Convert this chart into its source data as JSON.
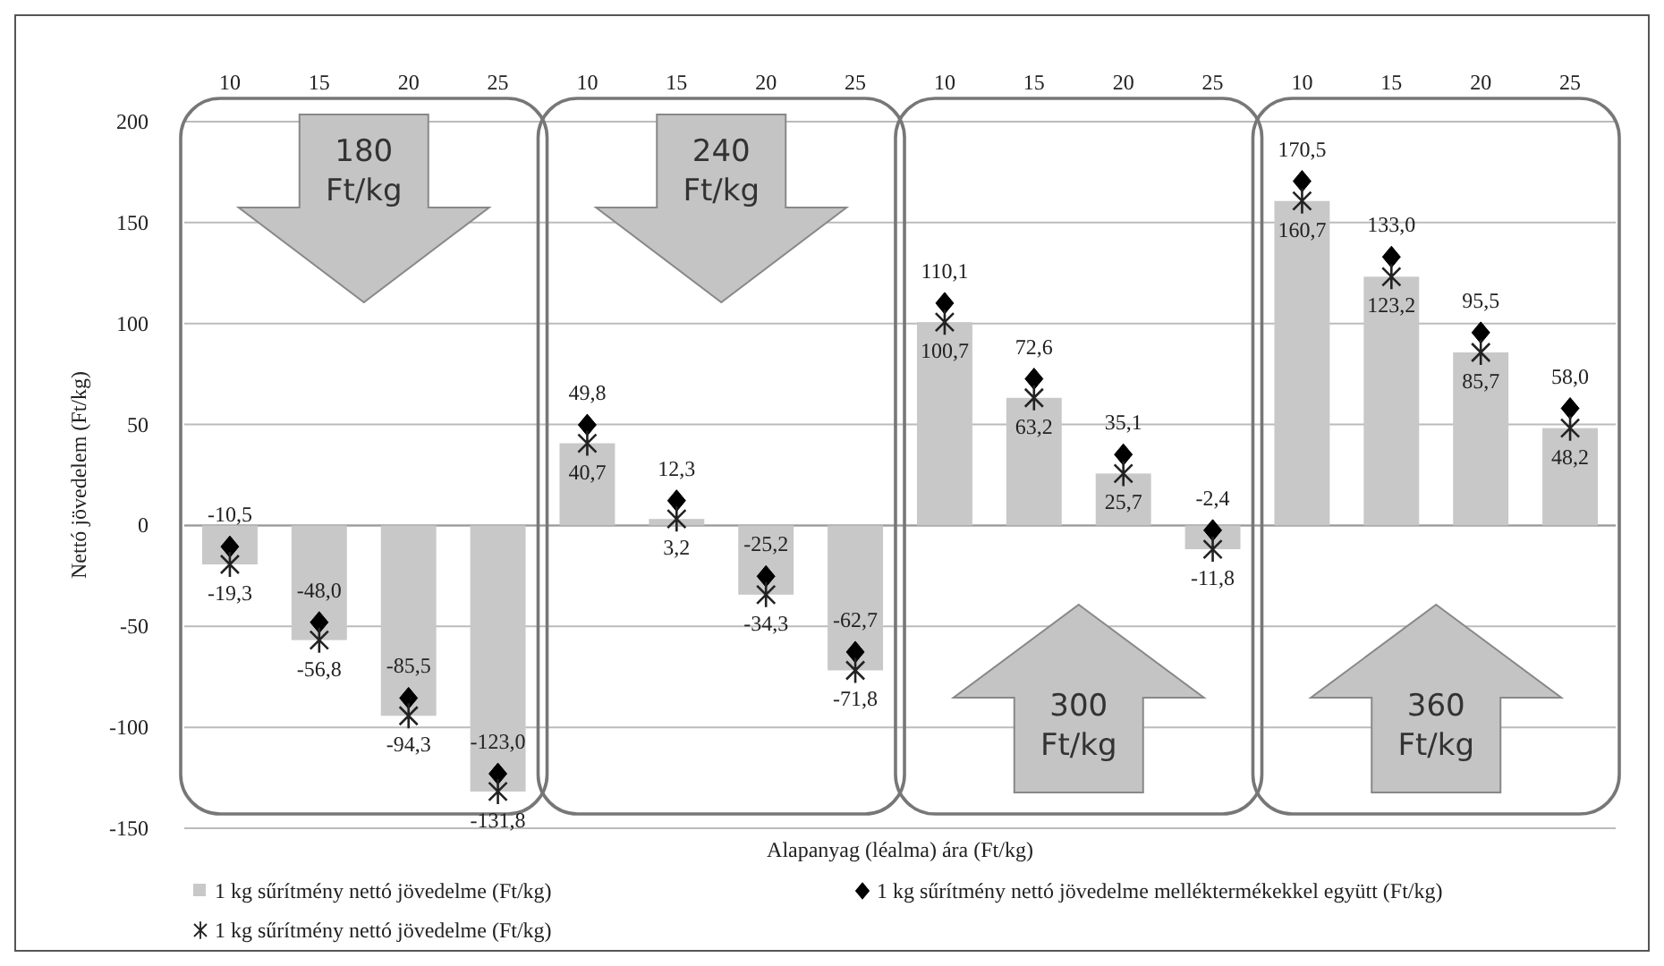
{
  "chart_data": {
    "type": "bar",
    "xlabel": "Alapanyag (léalma) ára (Ft/kg)",
    "ylabel": "Nettó jövedelem (Ft/kg)",
    "categories": [
      "10",
      "15",
      "20",
      "25",
      "10",
      "15",
      "20",
      "25",
      "10",
      "15",
      "20",
      "25",
      "10",
      "15",
      "20",
      "25"
    ],
    "series": [
      {
        "name": "1 kg sűrítmény nettó jövedelme (Ft/kg)",
        "color": "#c8c8c8",
        "values": [
          -19.3,
          -56.8,
          -94.3,
          -131.8,
          40.7,
          3.2,
          -34.3,
          -71.8,
          100.7,
          63.2,
          25.7,
          -11.8,
          160.7,
          123.2,
          85.7,
          48.2
        ],
        "value_labels": [
          "-19,3",
          "-56,8",
          "-94,3",
          "-131,8",
          "40,7",
          "3,2",
          "-34,3",
          "-71,8",
          "100,7",
          "63,2",
          "25,7",
          "-11,8",
          "160,7",
          "123,2",
          "85,7",
          "48,2"
        ]
      },
      {
        "type": "scatter",
        "name": "1 kg sűrítmény nettó jövedelme melléktermékekkel együtt (Ft/kg)",
        "color": "#000000",
        "marker": "diamond",
        "values": [
          -10.5,
          -48.0,
          -85.5,
          -123.0,
          49.8,
          12.3,
          -25.2,
          -62.7,
          110.1,
          72.6,
          35.1,
          -2.4,
          170.5,
          133.0,
          95.5,
          58.0
        ],
        "value_labels": [
          "-10,5",
          "-48,0",
          "-85,5",
          "-123,0",
          "49,8",
          "12,3",
          "-25,2",
          "-62,7",
          "110,1",
          "72,6",
          "35,1",
          "-2,4",
          "170,5",
          "133,0",
          "95,5",
          "58,0"
        ]
      },
      {
        "type": "scatter",
        "name": "1 kg sűrítmény nettó jövedelme (Ft/kg)",
        "color": "#222222",
        "marker": "cross",
        "values": [
          -19.3,
          -56.8,
          -94.3,
          -131.8,
          40.7,
          3.2,
          -34.3,
          -71.8,
          100.7,
          63.2,
          25.7,
          -11.8,
          160.7,
          123.2,
          85.7,
          48.2
        ]
      }
    ],
    "ylim": [
      -150,
      200
    ],
    "yticks": [
      -150,
      -100,
      -50,
      0,
      50,
      100,
      150,
      200
    ],
    "grid": "y",
    "legend": "bottom",
    "annotations": [
      "180 Ft/kg",
      "240 Ft/kg",
      "300 Ft/kg",
      "360 Ft/kg"
    ]
  }
}
